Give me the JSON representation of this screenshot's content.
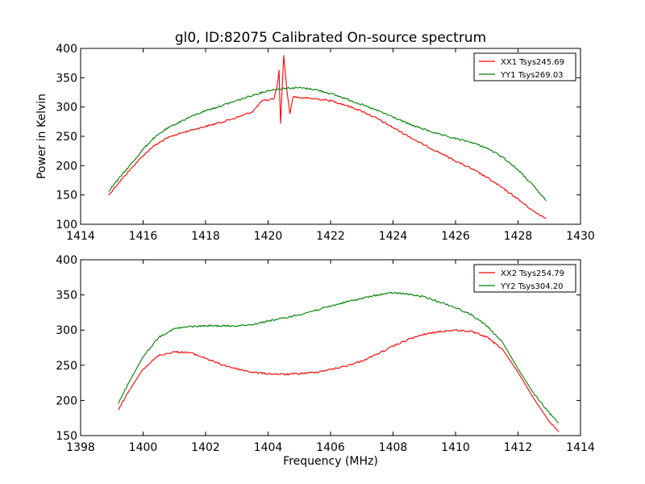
{
  "figure": {
    "title": "gl0, ID:82075 Calibrated On-source spectrum",
    "xlabel": "Frequency (MHz)",
    "ylabel": "Power in Kelvin"
  },
  "chart_data": [
    {
      "type": "line",
      "xlim": [
        1414,
        1430
      ],
      "ylim": [
        100,
        400
      ],
      "xticks": [
        1414,
        1416,
        1418,
        1420,
        1422,
        1424,
        1426,
        1428,
        1430
      ],
      "yticks": [
        100,
        150,
        200,
        250,
        300,
        350,
        400
      ],
      "grid": false,
      "legend_position": "top-right",
      "series": [
        {
          "name": "XX1 Tsys245.69",
          "color": "#ff0000",
          "x": [
            1414.9,
            1415.3,
            1415.7,
            1416.0,
            1416.3,
            1416.7,
            1417.0,
            1417.5,
            1418.0,
            1418.5,
            1419.0,
            1419.5,
            1419.8,
            1420.0,
            1420.2,
            1420.3,
            1420.35,
            1420.4,
            1420.45,
            1420.5,
            1420.6,
            1420.7,
            1420.8,
            1421.0,
            1421.5,
            1422.0,
            1422.5,
            1423.0,
            1423.5,
            1424.0,
            1424.5,
            1425.0,
            1425.5,
            1426.0,
            1426.5,
            1427.0,
            1427.5,
            1428.0,
            1428.5,
            1428.9
          ],
          "y": [
            150,
            176,
            200,
            217,
            232,
            245,
            252,
            260,
            267,
            274,
            282,
            292,
            310,
            312,
            315,
            340,
            363,
            272,
            330,
            388,
            330,
            288,
            318,
            316,
            314,
            311,
            303,
            293,
            280,
            265,
            250,
            235,
            222,
            208,
            195,
            180,
            162,
            143,
            122,
            110
          ]
        },
        {
          "name": "YY1 Tsys269.03",
          "color": "#008000",
          "x": [
            1414.9,
            1415.3,
            1415.7,
            1416.0,
            1416.3,
            1416.7,
            1417.0,
            1417.5,
            1418.0,
            1418.5,
            1419.0,
            1419.5,
            1420.0,
            1420.5,
            1421.0,
            1421.5,
            1422.0,
            1422.5,
            1423.0,
            1423.5,
            1424.0,
            1424.5,
            1425.0,
            1425.5,
            1426.0,
            1426.5,
            1427.0,
            1427.5,
            1428.0,
            1428.5,
            1428.9
          ],
          "y": [
            157,
            183,
            208,
            228,
            245,
            261,
            270,
            283,
            294,
            302,
            311,
            320,
            328,
            332,
            333,
            330,
            323,
            314,
            304,
            294,
            283,
            271,
            262,
            253,
            246,
            240,
            230,
            215,
            193,
            165,
            140
          ]
        }
      ]
    },
    {
      "type": "line",
      "xlim": [
        1398,
        1414
      ],
      "ylim": [
        150,
        400
      ],
      "xticks": [
        1398,
        1400,
        1402,
        1404,
        1406,
        1408,
        1410,
        1412,
        1414
      ],
      "yticks": [
        150,
        200,
        250,
        300,
        350,
        400
      ],
      "grid": false,
      "legend_position": "top-right",
      "series": [
        {
          "name": "XX2 Tsys254.79",
          "color": "#ff0000",
          "x": [
            1399.2,
            1399.5,
            1400.0,
            1400.5,
            1401.0,
            1401.5,
            1402.0,
            1402.5,
            1403.0,
            1403.5,
            1404.0,
            1404.5,
            1405.0,
            1405.5,
            1406.0,
            1406.5,
            1407.0,
            1407.5,
            1408.0,
            1408.5,
            1409.0,
            1409.5,
            1410.0,
            1410.5,
            1411.0,
            1411.5,
            1412.0,
            1412.5,
            1413.0,
            1413.3
          ],
          "y": [
            186,
            210,
            245,
            264,
            269,
            268,
            260,
            251,
            245,
            240,
            238,
            237,
            238,
            240,
            244,
            249,
            256,
            266,
            277,
            287,
            294,
            298,
            300,
            298,
            290,
            273,
            240,
            203,
            170,
            155
          ]
        },
        {
          "name": "YY2 Tsys304.20",
          "color": "#008000",
          "x": [
            1399.2,
            1399.5,
            1400.0,
            1400.5,
            1401.0,
            1401.5,
            1402.0,
            1402.5,
            1403.0,
            1403.5,
            1404.0,
            1404.5,
            1405.0,
            1405.5,
            1406.0,
            1406.5,
            1407.0,
            1407.5,
            1408.0,
            1408.5,
            1409.0,
            1409.5,
            1410.0,
            1410.5,
            1411.0,
            1411.5,
            1412.0,
            1412.5,
            1413.0,
            1413.3
          ],
          "y": [
            195,
            222,
            262,
            290,
            302,
            305,
            306,
            306,
            306,
            308,
            313,
            317,
            322,
            328,
            334,
            340,
            345,
            350,
            353,
            351,
            347,
            340,
            332,
            322,
            306,
            283,
            245,
            210,
            182,
            168
          ]
        }
      ]
    }
  ]
}
